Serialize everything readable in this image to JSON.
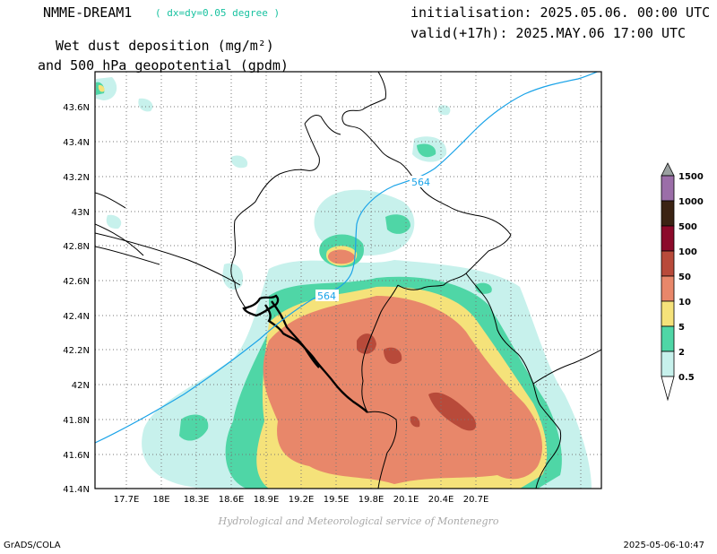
{
  "header": {
    "model_name": "NMME-DREAM1",
    "model_resolution": "( dx=dy=0.05 degree )",
    "title_line1": "Wet dust deposition (mg/m²)",
    "title_line2": "and 500 hPa geopotential (gpdm)",
    "initialisation": "initialisation: 2025.05.06. 00:00 UTC",
    "valid": "valid(+17h): 2025.MAY.06 17:00 UTC"
  },
  "map": {
    "lon_ticks": [
      "17.7E",
      "18E",
      "18.3E",
      "18.6E",
      "18.9E",
      "19.2E",
      "19.5E",
      "19.8E",
      "20.1E",
      "20.4E",
      "20.7E"
    ],
    "lat_ticks": [
      "43.6N",
      "43.4N",
      "43.2N",
      "43N",
      "42.8N",
      "42.6N",
      "42.4N",
      "42.2N",
      "42N",
      "41.8N",
      "41.6N",
      "41.4N"
    ],
    "contour_labels": [
      "564",
      "564"
    ]
  },
  "legend": {
    "levels": [
      "1500",
      "1000",
      "500",
      "100",
      "50",
      "10",
      "5",
      "2",
      "0.5"
    ],
    "colors": [
      "#9aa0a0",
      "#9b6ea8",
      "#3b2313",
      "#8b0a2a",
      "#b84a3a",
      "#e8876a",
      "#f5e27a",
      "#4fd6a6",
      "#c7f1ec"
    ]
  },
  "footer": {
    "credit": "Hydrological and Meteorological service of Montenegro",
    "software": "GrADS/COLA",
    "timestamp": "2025-05-06-10:47"
  }
}
